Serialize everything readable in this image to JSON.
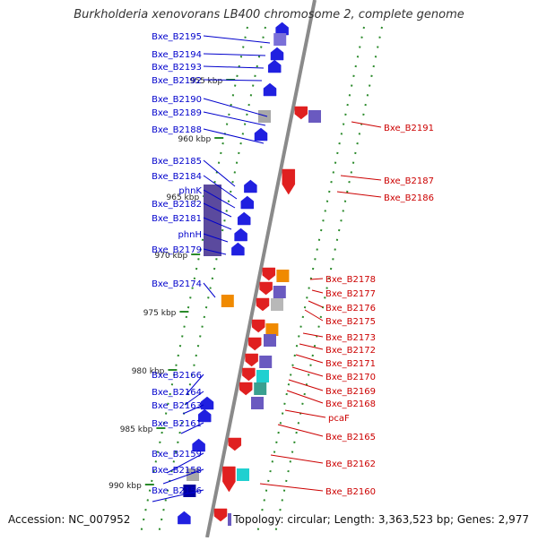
{
  "title": "Burkholderia xenovorans LB400 chromosome 2, complete genome",
  "footer": {
    "accession": "Accession: NC_007952",
    "topology": "Topology: circular; Length: 3,363,523 bp; Genes: 2,977"
  },
  "colors": {
    "backbone": "#8a8a8a",
    "forward_label": "#0000cc",
    "reverse_label": "#cc0000",
    "tick": "#2a8a2a"
  },
  "ticks": [
    "955 kbp",
    "960 kbp",
    "965 kbp",
    "970 kbp",
    "975 kbp",
    "980 kbp",
    "985 kbp",
    "990 kbp"
  ],
  "forward_genes": [
    "Bxe_B2195",
    "Bxe_B2194",
    "Bxe_B2193",
    "Bxe_B2192",
    "Bxe_B2190",
    "Bxe_B2189",
    "Bxe_B2188",
    "Bxe_B2185",
    "Bxe_B2184",
    "phnK",
    "Bxe_B2182",
    "Bxe_B2181",
    "phnH",
    "Bxe_B2179",
    "Bxe_B2174",
    "Bxe_B2166",
    "Bxe_B2164",
    "Bxe_B2163",
    "Bxe_B2161",
    "Bxe_B2159",
    "Bxe_B2158",
    "Bxe_B2156"
  ],
  "reverse_genes": [
    "Bxe_B2191",
    "Bxe_B2187",
    "Bxe_B2186",
    "Bxe_B2178",
    "Bxe_B2177",
    "Bxe_B2176",
    "Bxe_B2175",
    "Bxe_B2173",
    "Bxe_B2172",
    "Bxe_B2171",
    "Bxe_B2170",
    "Bxe_B2169",
    "Bxe_B2168",
    "pcaF",
    "Bxe_B2165",
    "Bxe_B2162",
    "Bxe_B2160"
  ]
}
